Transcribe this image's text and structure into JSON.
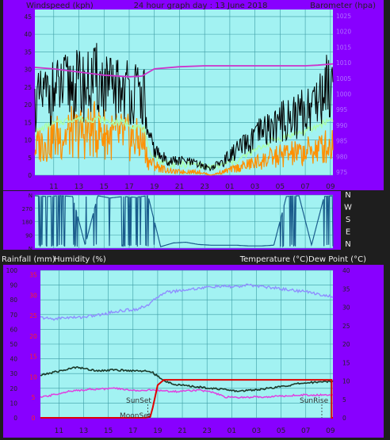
{
  "header": {
    "left_label": "Windspeed (kph)",
    "title": "24 hour graph day : 13 June 2018",
    "right_label": "Barometer (hpa)"
  },
  "lower_header": {
    "left_labels": [
      "Rainfall (mm)",
      "Humidity (%)"
    ],
    "right_label": "Temperature (°C)Dew Point (°C)"
  },
  "annotations": {
    "sunset": "SunSet",
    "moonset": "MoonSet",
    "sunrise": "SunRise"
  },
  "colors": {
    "background": "#1e1e1e",
    "frame_purple": "#8800ff",
    "plot_bg": "#a2f2f2",
    "grid": "#3c9ba4",
    "wind_gust": "#000000",
    "wind_avg": "#ff9000",
    "wind_smooth": "#aaffaa",
    "barometer": "#cc33cc",
    "direction": "#1a5c8c",
    "humidity": "#8f8fff",
    "temperature": "#1a3a2a",
    "dewpoint": "#e040e0",
    "rainfall": "#e00000",
    "axis_text": "#222222",
    "red_text": "#ff2020"
  },
  "chart_data": [
    {
      "type": "line",
      "title": "24 hour graph day : 13 June 2018",
      "x_ticks": [
        "11",
        "13",
        "15",
        "17",
        "19",
        "21",
        "23",
        "01",
        "03",
        "05",
        "07",
        "09"
      ],
      "y_left_label": "Windspeed (kph)",
      "y_left_ticks": [
        0,
        5,
        10,
        15,
        20,
        25,
        30,
        35,
        40,
        45
      ],
      "ylim_left": [
        0,
        47
      ],
      "y_right_label": "Barometer (hpa)",
      "y_right_ticks": [
        975,
        980,
        985,
        990,
        995,
        1000,
        1005,
        1010,
        1015,
        1020,
        1025
      ],
      "ylim_right": [
        974,
        1027
      ],
      "grid": true,
      "series": [
        {
          "name": "wind_gust",
          "x": [
            9.5,
            10.5,
            11.5,
            12.5,
            13.5,
            14.5,
            15.5,
            16.5,
            17.5,
            18.2,
            18.5,
            19.5,
            20.5,
            21.5,
            22.5,
            23.5,
            24.5,
            25.5,
            26.5,
            27.5,
            28.5,
            29.5,
            30.5,
            31.5,
            32.5,
            33.2
          ],
          "y": [
            20,
            23,
            24,
            26,
            25,
            27,
            24,
            25,
            23,
            22,
            10,
            5,
            4,
            4,
            3,
            2,
            4,
            7,
            9,
            12,
            14,
            16,
            17,
            20,
            24,
            28
          ]
        },
        {
          "name": "wind_avg",
          "x": [
            9.5,
            10.5,
            11.5,
            12.5,
            13.5,
            14.5,
            15.5,
            16.5,
            17.5,
            18.2,
            18.5,
            19.5,
            20.5,
            21.5,
            22.5,
            23.5,
            24.5,
            25.5,
            26.5,
            27.5,
            28.5,
            29.5,
            30.5,
            31.5,
            32.5,
            33.2
          ],
          "y": [
            8,
            10,
            11,
            12,
            12,
            13,
            11,
            11,
            10,
            9,
            4,
            2,
            1,
            1,
            1,
            0,
            1,
            2,
            3,
            4,
            5,
            6,
            6,
            7,
            8,
            9
          ]
        },
        {
          "name": "wind_smooth",
          "x": [
            9.5,
            10.5,
            11.5,
            12.5,
            13.5,
            14.5,
            15.5,
            16.5,
            17.5,
            18.2,
            18.5,
            19.5,
            20.5,
            21.5,
            22.5,
            23.5,
            24.5,
            25.5,
            26.5,
            27.5,
            28.5,
            29.5,
            30.5,
            31.5,
            32.5,
            33.2
          ],
          "y": [
            12,
            14,
            15,
            16,
            16,
            16,
            15,
            15,
            14,
            13,
            7,
            4,
            3,
            3,
            3,
            2,
            3,
            4,
            6,
            8,
            10,
            11,
            12,
            13,
            15,
            16
          ]
        },
        {
          "name": "barometer",
          "axis": "right",
          "x": [
            9.5,
            11,
            13,
            15,
            17,
            18,
            19,
            21,
            23,
            25,
            27,
            29,
            31,
            32,
            33.2
          ],
          "y": [
            1008.5,
            1008,
            1007,
            1006,
            1005.5,
            1005.7,
            1008,
            1008.7,
            1009,
            1009,
            1009,
            1009,
            1009,
            1009.2,
            1009.6
          ]
        }
      ]
    },
    {
      "type": "line",
      "x_ticks": [
        "11",
        "13",
        "15",
        "17",
        "19",
        "21",
        "23",
        "01",
        "03",
        "05",
        "07",
        "09"
      ],
      "y_left_ticks": [
        "N",
        "90",
        "180",
        "270",
        "N"
      ],
      "y_right_ticks": [
        "N",
        "W",
        "S",
        "E",
        "N"
      ],
      "ylim_left": [
        0,
        360
      ],
      "grid": true,
      "series": [
        {
          "name": "wind_direction",
          "x": [
            9.5,
            10.5,
            11.5,
            12.5,
            13.5,
            14.5,
            15.5,
            16.5,
            17.5,
            18.5,
            19.5,
            20.5,
            21.5,
            22.5,
            23.5,
            24.5,
            25.5,
            26.5,
            27.5,
            28.5,
            29.5,
            30.5,
            31.5,
            32.5,
            33.2
          ],
          "y": [
            355,
            350,
            355,
            350,
            20,
            355,
            340,
            350,
            345,
            355,
            10,
            35,
            40,
            25,
            20,
            20,
            20,
            15,
            15,
            20,
            350,
            355,
            20,
            350,
            355
          ]
        }
      ]
    },
    {
      "type": "line",
      "x_ticks": [
        "11",
        "13",
        "15",
        "17",
        "19",
        "21",
        "23",
        "01",
        "03",
        "05",
        "07",
        "09"
      ],
      "y_left_labels": [
        "Rainfall (mm)",
        "Humidity (%)"
      ],
      "y_left_ticks": [
        0,
        10,
        20,
        30,
        40,
        50,
        60,
        70,
        80,
        90,
        100
      ],
      "y_left_red_ticks": [
        0,
        5,
        10,
        15,
        20,
        25,
        30,
        35
      ],
      "ylim_left": [
        0,
        100
      ],
      "y_right_label": "Temperature (°C)Dew Point (°C)",
      "y_right_ticks": [
        0,
        5,
        10,
        15,
        20,
        25,
        30,
        35,
        40
      ],
      "ylim_right": [
        0,
        40
      ],
      "grid": true,
      "annotations": [
        "SunSet",
        "MoonSet",
        "SunRise"
      ],
      "series": [
        {
          "name": "humidity",
          "axis": "left",
          "x": [
            9.5,
            10.5,
            11.5,
            12.5,
            13.5,
            14.5,
            15.5,
            16.5,
            17.5,
            18.5,
            19,
            19.5,
            20.5,
            21.5,
            22.5,
            23.5,
            24.5,
            25.5,
            26.5,
            27.5,
            28.5,
            29.5,
            30.5,
            31.5,
            32.5,
            33.2
          ],
          "y": [
            68,
            67,
            68,
            68,
            69,
            70,
            72,
            73,
            74,
            78,
            82,
            85,
            86,
            87,
            88,
            89,
            89,
            89,
            90,
            89,
            88,
            87,
            86,
            85,
            83,
            82
          ]
        },
        {
          "name": "temperature",
          "axis": "right",
          "x": [
            9.5,
            10.5,
            11.5,
            12.5,
            13.5,
            14.5,
            15.5,
            16.5,
            17.5,
            18.5,
            19.5,
            20.5,
            21.5,
            22.5,
            23.5,
            24.5,
            25.5,
            26.5,
            27.5,
            28.5,
            29.5,
            30.5,
            31.5,
            32.5,
            33.2
          ],
          "y": [
            11.5,
            12.3,
            13,
            13.8,
            13,
            12.8,
            13,
            12.8,
            12.8,
            12.5,
            10,
            9,
            8.6,
            8.3,
            8,
            7.6,
            7.2,
            7.5,
            7.8,
            8.2,
            8.7,
            9.3,
            9.6,
            9.8,
            10
          ]
        },
        {
          "name": "dewpoint",
          "axis": "right",
          "x": [
            9.5,
            10.5,
            11.5,
            12.5,
            13.5,
            14.5,
            15.5,
            16.5,
            17.5,
            18.5,
            19.5,
            20.5,
            21.5,
            22.5,
            23.5,
            24.5,
            25.5,
            26.5,
            27.5,
            28.5,
            29.5,
            30.5,
            31.5,
            32.5,
            33.2
          ],
          "y": [
            5.5,
            6.2,
            7,
            7.4,
            7.8,
            7.8,
            8,
            7.6,
            7.4,
            7.5,
            7.3,
            7.1,
            7.4,
            7.5,
            6.8,
            5.6,
            5.5,
            5.6,
            5.7,
            5.8,
            6,
            6.2,
            6.2,
            6.2,
            6.3
          ]
        },
        {
          "name": "rainfall",
          "axis": "left_red",
          "x": [
            9.5,
            18,
            18.4,
            18.6,
            19,
            19.5,
            21,
            24,
            27,
            30,
            33.1,
            33.1,
            33.2
          ],
          "y": [
            0,
            0,
            0.3,
            2.5,
            8,
            9.3,
            9.3,
            9.3,
            9.3,
            9.3,
            9.3,
            0,
            0
          ]
        }
      ]
    }
  ]
}
